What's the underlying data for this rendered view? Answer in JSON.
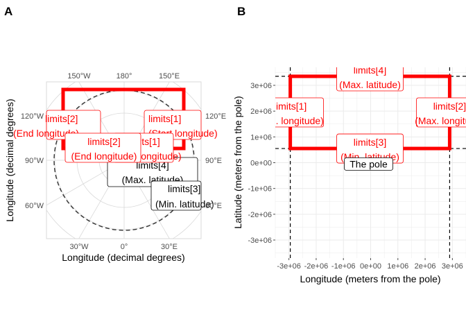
{
  "panels": [
    {
      "tag": "A"
    },
    {
      "tag": "B"
    }
  ],
  "colors": {
    "red": "#ff0000",
    "grid": "#ebebeb",
    "polar_grid": "#d9d9d9",
    "dashed": "#333333",
    "tick": "#4d4d4d",
    "black": "#000000"
  },
  "chart_data": [
    {
      "type": "map",
      "panel": "A",
      "projection": "polar stereographic (north pole)",
      "xlabel": "Longitude (decimal degrees)",
      "ylabel": "Longitude (decimal degrees)",
      "bottom_ticks": [
        "30°W",
        "0°",
        "30°E"
      ],
      "top_ticks": [
        "150°W",
        "180°",
        "150°E"
      ],
      "left_ticks": [
        "60°W",
        "90°W",
        "120°W"
      ],
      "right_ticks": [
        "60°E",
        "90°E",
        "120°E"
      ],
      "labels": [
        {
          "id": "a_l2_left",
          "line1": "limits[2]",
          "line2": "(End longitude)",
          "color": "red"
        },
        {
          "id": "a_l1_right",
          "line1": "limits[1]",
          "line2": "(Start longitude)",
          "color": "red"
        },
        {
          "id": "a_l4",
          "line1": "limits[4]",
          "line2": "(Max. latitude)",
          "color": "black"
        },
        {
          "id": "a_l2_mid",
          "line1": "limits[2]",
          "line2": "(End longitude)",
          "color": "red"
        },
        {
          "id": "a_l1_mid",
          "line1": "limits[1]",
          "line2": "(Start longitude)",
          "color": "red"
        },
        {
          "id": "a_l3",
          "line1": "limits[3]",
          "line2": "(Min. latitude)",
          "color": "black"
        }
      ]
    },
    {
      "type": "map",
      "panel": "B",
      "projection": "polar stereographic (meters)",
      "xlabel": "Longitude (meters from the pole)",
      "ylabel": "Latitude (meters from the pole)",
      "xlim": [
        -3500000,
        3500000
      ],
      "ylim": [
        -3700000,
        3700000
      ],
      "x_tick_values": [
        -3000000,
        -2000000,
        -1000000,
        0,
        1000000,
        2000000,
        3000000
      ],
      "x_tick_labels": [
        "-3e+06",
        "-2e+06",
        "-1e+06",
        "0e+00",
        "1e+06",
        "2e+06",
        "3e+06"
      ],
      "y_tick_values": [
        -3000000,
        -2000000,
        -1000000,
        0,
        1000000,
        2000000,
        3000000
      ],
      "y_tick_labels": [
        "-3e+06",
        "-2e+06",
        "-1e+06",
        "0e+00",
        "1e+06",
        "2e+06",
        "3e+06"
      ],
      "limits_box": {
        "xmin": -2950000,
        "xmax": 2900000,
        "ymin": 550000,
        "ymax": 3350000
      },
      "pole": {
        "x": 0,
        "y": 0
      },
      "labels": [
        {
          "id": "b_l4",
          "line1": "limits[4]",
          "line2": "(Max. latitude)",
          "color": "red"
        },
        {
          "id": "b_l1",
          "line1": "limits[1]",
          "line2": "(Min. longitude)",
          "color": "red"
        },
        {
          "id": "b_l2",
          "line1": "limits[2]",
          "line2": "(Max. longitude)",
          "color": "red"
        },
        {
          "id": "b_l3",
          "line1": "limits[3]",
          "line2": "(Min. latitude)",
          "color": "red"
        },
        {
          "id": "b_pole",
          "line1": "The pole",
          "color": "black"
        }
      ]
    }
  ]
}
